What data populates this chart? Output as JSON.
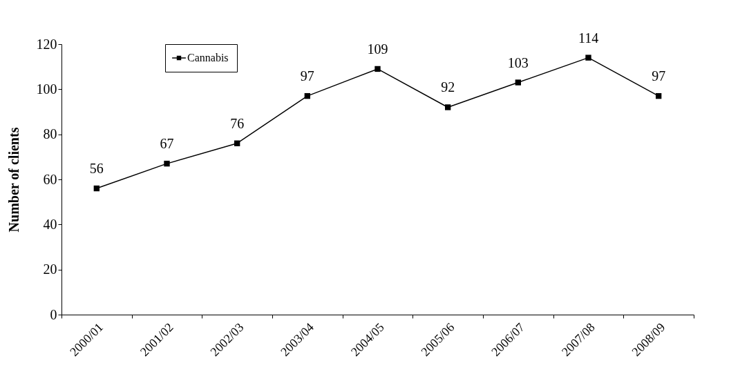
{
  "chart_data": {
    "type": "line",
    "ylabel": "Number of clients",
    "categories": [
      "2000/01",
      "2001/02",
      "2002/03",
      "2003/04",
      "2004/05",
      "2005/06",
      "2006/07",
      "2007/08",
      "2008/09"
    ],
    "series": [
      {
        "name": "Cannabis",
        "color": "#000000",
        "values": [
          56,
          67,
          76,
          97,
          109,
          92,
          103,
          114,
          97
        ]
      }
    ],
    "ylim": [
      0,
      120
    ],
    "yticks": [
      0,
      20,
      40,
      60,
      80,
      100,
      120
    ],
    "grid": false,
    "legend": "top left",
    "marker": "square",
    "line_style": "solid",
    "data_labels": true
  }
}
